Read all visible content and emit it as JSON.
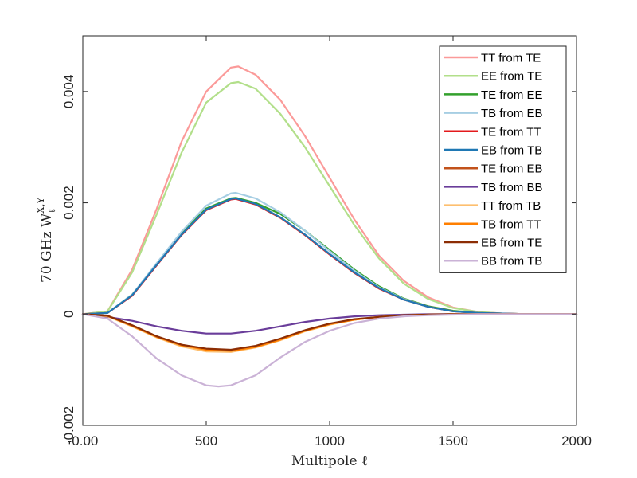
{
  "chart_data": {
    "type": "line",
    "title": "",
    "xlabel": "Multipole ℓ",
    "ylabel": "70 GHz Wℓ^{X,Y}",
    "ylabel_prefix": "70 GHz W",
    "ylabel_sub": "ℓ",
    "ylabel_sup": "X,Y",
    "xlim": [
      0,
      2000
    ],
    "ylim": [
      -0.002,
      0.005
    ],
    "xticks": [
      0,
      500,
      1000,
      1500,
      2000
    ],
    "xtick_labels": [
      "-0.00",
      "500",
      "1000",
      "1500",
      "2000"
    ],
    "yticks": [
      -0.002,
      0,
      0.002,
      0.004
    ],
    "ytick_labels": [
      "-0.002",
      "0",
      "0.002",
      "0.004"
    ],
    "legend_position": "top-right",
    "series": [
      {
        "name": "TT from TE",
        "color": "#fb9a99",
        "x": [
          0,
          100,
          200,
          300,
          400,
          500,
          600,
          630,
          700,
          800,
          900,
          1000,
          1100,
          1200,
          1300,
          1400,
          1500,
          1600,
          1700,
          1800,
          1900,
          2000
        ],
        "y": [
          0,
          5e-05,
          0.0008,
          0.0019,
          0.0031,
          0.004,
          0.00443,
          0.00445,
          0.0043,
          0.00385,
          0.0032,
          0.00245,
          0.0017,
          0.00105,
          0.0006,
          0.0003,
          0.00012,
          4e-05,
          1e-05,
          0,
          0,
          0
        ]
      },
      {
        "name": "EE from TE",
        "color": "#b2df8a",
        "x": [
          0,
          100,
          200,
          300,
          400,
          500,
          600,
          630,
          700,
          800,
          900,
          1000,
          1100,
          1200,
          1300,
          1400,
          1500,
          1600,
          1700,
          1800,
          1900,
          2000
        ],
        "y": [
          0,
          5e-05,
          0.00075,
          0.0018,
          0.0029,
          0.0038,
          0.00415,
          0.00417,
          0.00405,
          0.0036,
          0.003,
          0.0023,
          0.0016,
          0.001,
          0.00055,
          0.00027,
          0.00011,
          4e-05,
          1e-05,
          0,
          0,
          0
        ]
      },
      {
        "name": "TE from EE",
        "color": "#33a02c",
        "x": [
          0,
          100,
          200,
          300,
          400,
          500,
          600,
          620,
          700,
          800,
          900,
          1000,
          1100,
          1200,
          1300,
          1400,
          1500,
          1600,
          1700,
          1800,
          1900,
          2000
        ],
        "y": [
          0,
          2e-05,
          0.00035,
          0.0009,
          0.00145,
          0.0019,
          0.00208,
          0.00209,
          0.002,
          0.0018,
          0.0015,
          0.00115,
          0.0008,
          0.0005,
          0.00028,
          0.00014,
          6e-05,
          2e-05,
          1e-05,
          0,
          0,
          0
        ]
      },
      {
        "name": "TB from EB",
        "color": "#a6cee3",
        "x": [
          0,
          100,
          200,
          300,
          400,
          500,
          600,
          620,
          700,
          800,
          900,
          1000,
          1100,
          1200,
          1300,
          1400,
          1500,
          1600,
          1700,
          1800,
          1900,
          2000
        ],
        "y": [
          0,
          2e-05,
          0.00035,
          0.00092,
          0.00148,
          0.00195,
          0.00217,
          0.00218,
          0.00208,
          0.00183,
          0.0015,
          0.00113,
          0.00078,
          0.00048,
          0.00027,
          0.00013,
          5e-05,
          2e-05,
          1e-05,
          0,
          0,
          0
        ]
      },
      {
        "name": "TE from TT",
        "color": "#e31a1c",
        "x": [
          0,
          100,
          200,
          300,
          400,
          500,
          600,
          620,
          700,
          800,
          900,
          1000,
          1100,
          1200,
          1300,
          1400,
          1500,
          1600,
          1700,
          1800,
          1900,
          2000
        ],
        "y": [
          0,
          2e-05,
          0.00033,
          0.00088,
          0.00142,
          0.00187,
          0.00206,
          0.00207,
          0.00197,
          0.00173,
          0.00142,
          0.00107,
          0.00074,
          0.00046,
          0.00026,
          0.00013,
          5e-05,
          2e-05,
          1e-05,
          0,
          0,
          0
        ]
      },
      {
        "name": "EB from TB",
        "color": "#1f78b4",
        "x": [
          0,
          100,
          200,
          300,
          400,
          500,
          600,
          620,
          700,
          800,
          900,
          1000,
          1100,
          1200,
          1300,
          1400,
          1500,
          1600,
          1700,
          1800,
          1900,
          2000
        ],
        "y": [
          0,
          2e-05,
          0.00034,
          0.00089,
          0.00143,
          0.00188,
          0.00207,
          0.00208,
          0.00198,
          0.00174,
          0.00143,
          0.00108,
          0.00075,
          0.00047,
          0.00026,
          0.00013,
          5e-05,
          2e-05,
          1e-05,
          0,
          0,
          0
        ]
      },
      {
        "name": "TE from EB",
        "color": "#c2521b",
        "x": [
          0,
          100,
          200,
          300,
          400,
          500,
          600,
          700,
          800,
          900,
          1000,
          1100,
          1200,
          1300,
          1400,
          1500,
          1600,
          1700,
          1800,
          1900,
          2000
        ],
        "y": [
          0,
          -3e-05,
          -0.0002,
          -0.0004,
          -0.00055,
          -0.00063,
          -0.00065,
          -0.00058,
          -0.00045,
          -0.0003,
          -0.00018,
          -0.0001,
          -5e-05,
          -2e-05,
          -1e-05,
          0,
          0,
          0,
          0,
          0,
          0
        ]
      },
      {
        "name": "TB from BB",
        "color": "#6a3d9a",
        "x": [
          0,
          100,
          200,
          300,
          400,
          500,
          600,
          700,
          800,
          900,
          1000,
          1100,
          1200,
          1300,
          1400,
          1500,
          1600,
          1700,
          1800,
          1900,
          2000
        ],
        "y": [
          0,
          -5e-05,
          -0.00012,
          -0.00022,
          -0.0003,
          -0.00035,
          -0.00035,
          -0.0003,
          -0.00022,
          -0.00014,
          -8e-05,
          -4e-05,
          -2e-05,
          -1e-05,
          0,
          0,
          0,
          0,
          0,
          0,
          0
        ]
      },
      {
        "name": "TT from TB",
        "color": "#fdbf6f",
        "x": [
          0,
          100,
          200,
          300,
          400,
          500,
          600,
          700,
          800,
          900,
          1000,
          1100,
          1200,
          1300,
          1400,
          1500,
          1600,
          1700,
          1800,
          1900,
          2000
        ],
        "y": [
          0,
          -4e-05,
          -0.00022,
          -0.00042,
          -0.00058,
          -0.00067,
          -0.00068,
          -0.0006,
          -0.00047,
          -0.00031,
          -0.00019,
          -0.0001,
          -5e-05,
          -2e-05,
          -1e-05,
          0,
          0,
          0,
          0,
          0,
          0
        ]
      },
      {
        "name": "TB from TT",
        "color": "#ff7f00",
        "x": [
          0,
          100,
          200,
          300,
          400,
          500,
          600,
          700,
          800,
          900,
          1000,
          1100,
          1200,
          1300,
          1400,
          1500,
          1600,
          1700,
          1800,
          1900,
          2000
        ],
        "y": [
          0,
          -3e-05,
          -0.00021,
          -0.00041,
          -0.00056,
          -0.00064,
          -0.00066,
          -0.00059,
          -0.00046,
          -0.0003,
          -0.00018,
          -0.0001,
          -5e-05,
          -2e-05,
          -1e-05,
          0,
          0,
          0,
          0,
          0,
          0
        ]
      },
      {
        "name": "EB from TE",
        "color": "#8c2d04",
        "x": [
          0,
          100,
          200,
          300,
          400,
          500,
          600,
          700,
          800,
          900,
          1000,
          1100,
          1200,
          1300,
          1400,
          1500,
          1600,
          1700,
          1800,
          1900,
          2000
        ],
        "y": [
          0,
          -3e-05,
          -0.0002,
          -0.0004,
          -0.00055,
          -0.00062,
          -0.00064,
          -0.00057,
          -0.00044,
          -0.00029,
          -0.00017,
          -9e-05,
          -5e-05,
          -2e-05,
          -1e-05,
          0,
          0,
          0,
          0,
          0,
          0
        ]
      },
      {
        "name": "BB from TB",
        "color": "#cab2d6",
        "x": [
          0,
          100,
          200,
          300,
          400,
          500,
          550,
          600,
          700,
          800,
          900,
          1000,
          1100,
          1200,
          1300,
          1400,
          1500,
          1600,
          1700,
          1800,
          1900,
          2000
        ],
        "y": [
          0,
          -8e-05,
          -0.0004,
          -0.0008,
          -0.0011,
          -0.00128,
          -0.0013,
          -0.00128,
          -0.0011,
          -0.00078,
          -0.0005,
          -0.0003,
          -0.00016,
          -8e-05,
          -4e-05,
          -2e-05,
          -1e-05,
          0,
          0,
          0,
          0,
          0
        ]
      }
    ]
  }
}
